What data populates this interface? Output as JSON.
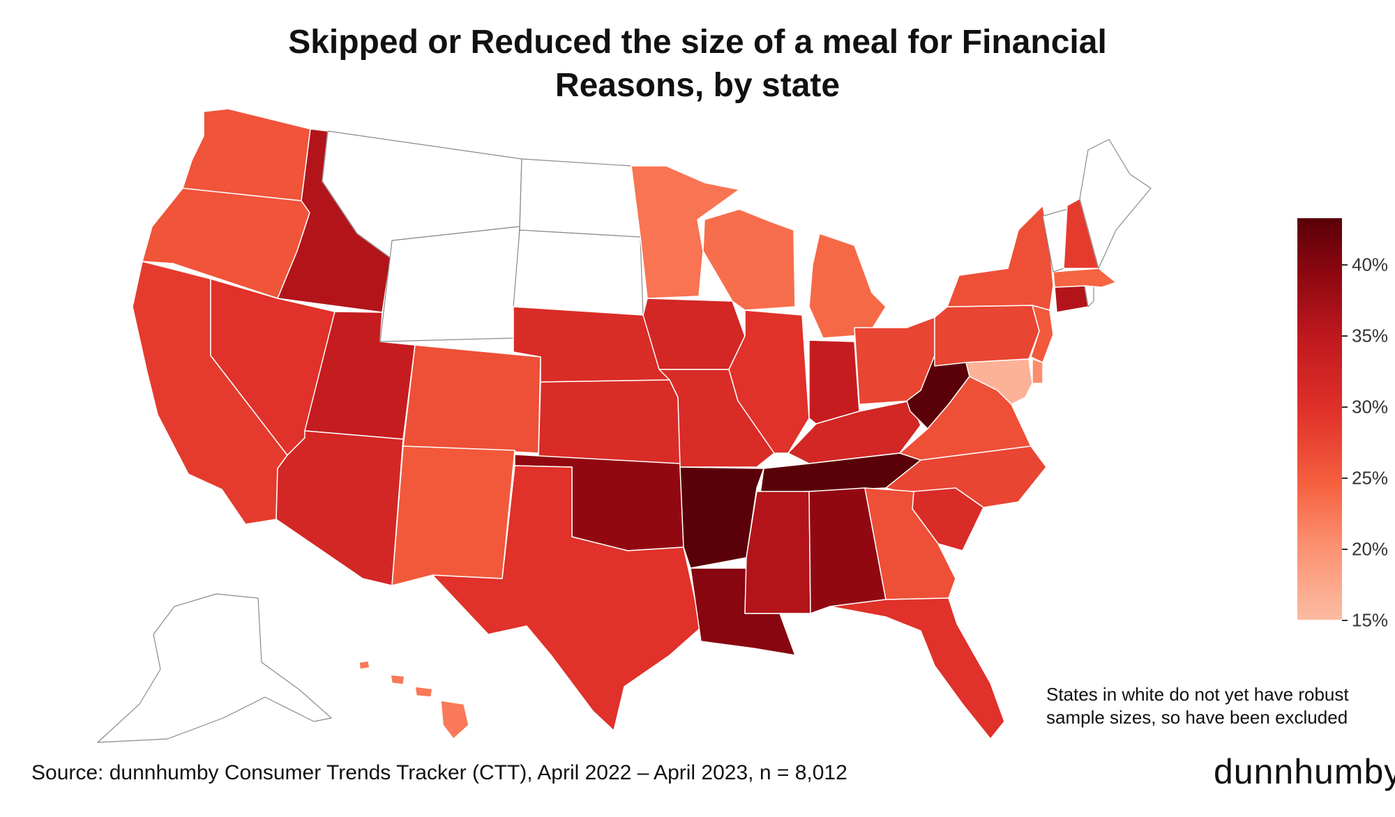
{
  "title": {
    "line1": "Skipped or Reduced the size of a meal for Financial",
    "line2": "Reasons, by state"
  },
  "legend": {
    "labels": [
      "40%",
      "35%",
      "30%",
      "25%",
      "20%",
      "15%"
    ],
    "min": 15,
    "max": 43,
    "scale_colors": [
      "#fcbba1",
      "#fc9272",
      "#f5603e",
      "#e0312a",
      "#c0191e",
      "#8e0710",
      "#5a0008"
    ]
  },
  "note": {
    "line1": "States in white do not yet have robust",
    "line2": "sample sizes, so have been excluded"
  },
  "source": "Source: dunnhumby Consumer Trends Tracker (CTT), April 2022 – April 2023, n = 8,012",
  "brand": "dunnhumby",
  "map_data": {
    "type": "choropleth",
    "value_unit": "%",
    "states": {
      "WA": 25.5,
      "OR": 25.5,
      "CA": 28,
      "ID": 35,
      "NV": 29,
      "UT": 33,
      "AZ": 31,
      "MT": null,
      "WY": null,
      "ND": null,
      "SD": null,
      "CO": 26,
      "NM": 25,
      "NE": 30,
      "KS": 30,
      "OK": 38,
      "TX": 29,
      "MN": 22.5,
      "IA": 31,
      "MO": 30,
      "AR": 43,
      "LA": 39,
      "WI": 23,
      "IL": 29,
      "MI": 23.5,
      "IN": 33,
      "OH": 27,
      "KY": 31,
      "TN": 43,
      "MS": 35,
      "AL": 38,
      "WV": 43,
      "VA": 26,
      "NC": 27,
      "SC": 30,
      "GA": 26,
      "FL": 29,
      "PA": 27,
      "NY": 26,
      "NJ": 25,
      "DE": 20,
      "MD": 16,
      "CT": 35,
      "RI": null,
      "MA": 24,
      "VT": null,
      "NH": 28,
      "ME": null,
      "HI": 22,
      "AK": null
    }
  }
}
